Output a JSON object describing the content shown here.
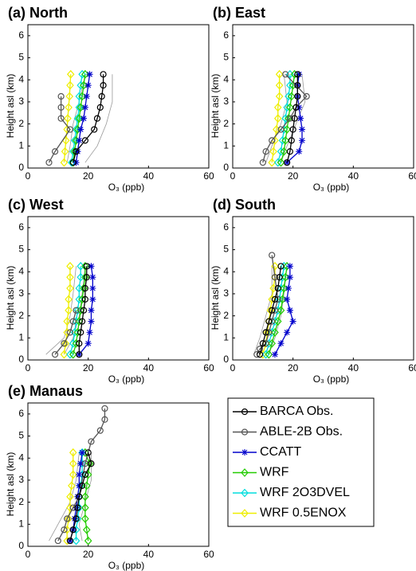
{
  "legend": {
    "entries": [
      {
        "name": "BARCA Obs.",
        "color": "#000000",
        "marker": "circle"
      },
      {
        "name": "ABLE-2B Obs.",
        "color": "#555555",
        "marker": "circle"
      },
      {
        "name": "CCATT",
        "color": "#0000cc",
        "marker": "asterisk"
      },
      {
        "name": "WRF",
        "color": "#22cc00",
        "marker": "diamond"
      },
      {
        "name": "WRF 2O3DVEL",
        "color": "#00dddd",
        "marker": "diamond"
      },
      {
        "name": "WRF 0.5ENOX",
        "color": "#eeee00",
        "marker": "diamond"
      }
    ]
  },
  "chart_data": [
    {
      "type": "line",
      "title": "(a) North",
      "x_label": "O₃ (ppb)",
      "y_label": "Height asl (km)",
      "xlim": [
        0,
        60
      ],
      "xticks": [
        0,
        20,
        40,
        60
      ],
      "ylim": [
        0,
        6.5
      ],
      "yticks": [
        0,
        1,
        2,
        3,
        4,
        5,
        6
      ],
      "range": {
        "y": [
          0.25,
          1,
          2,
          3,
          4.25
        ],
        "low": [
          13,
          14,
          15,
          17,
          19
        ],
        "high": [
          19,
          23,
          26,
          28,
          28
        ]
      },
      "series": [
        {
          "x": [
            15,
            16,
            19,
            22,
            23,
            24,
            24.5,
            25,
            25
          ],
          "y": [
            0.25,
            0.75,
            1.25,
            1.75,
            2.25,
            2.75,
            3.25,
            3.75,
            4.25
          ]
        },
        {
          "x": [
            7,
            9,
            14,
            11,
            11,
            11
          ],
          "y": [
            0.25,
            0.75,
            1.75,
            2.25,
            2.75,
            3.25
          ]
        },
        {
          "x": [
            16,
            16.5,
            17,
            17.5,
            18.5,
            19,
            19.5,
            20,
            20.5
          ],
          "y": [
            0.25,
            0.75,
            1.25,
            1.75,
            2.25,
            2.75,
            3.25,
            3.75,
            4.25
          ]
        },
        {
          "x": [
            15,
            15.5,
            16,
            16.5,
            17,
            17.5,
            18,
            18.5,
            19
          ],
          "y": [
            0.25,
            0.75,
            1.25,
            1.75,
            2.25,
            2.75,
            3.25,
            3.75,
            4.25
          ]
        },
        {
          "x": [
            14.5,
            15,
            15.5,
            16,
            16.5,
            17,
            17,
            17.5,
            18
          ],
          "y": [
            0.25,
            0.75,
            1.25,
            1.75,
            2.25,
            2.75,
            3.25,
            3.75,
            4.25
          ]
        },
        {
          "x": [
            12,
            12.3,
            12.6,
            13,
            13.2,
            13.5,
            13.8,
            14,
            14.2
          ],
          "y": [
            0.25,
            0.75,
            1.25,
            1.75,
            2.25,
            2.75,
            3.25,
            3.75,
            4.25
          ]
        }
      ]
    },
    {
      "type": "line",
      "title": "(b) East",
      "x_label": "O₃ (ppb)",
      "y_label": "Height asl (km)",
      "xlim": [
        0,
        60
      ],
      "xticks": [
        0,
        20,
        40,
        60
      ],
      "ylim": [
        0,
        6.5
      ],
      "yticks": [
        0,
        1,
        2,
        3,
        4,
        5,
        6
      ],
      "range": {
        "y": [
          0.25,
          1,
          2,
          3,
          4.25
        ],
        "low": [
          11,
          13,
          16,
          18,
          17
        ],
        "high": [
          16,
          18,
          21,
          24,
          23
        ]
      },
      "series": [
        {
          "x": [
            18,
            19,
            19.5,
            20,
            20.5,
            21,
            21.5,
            21.5,
            21.5
          ],
          "y": [
            0.25,
            0.75,
            1.25,
            1.75,
            2.25,
            2.75,
            3.25,
            3.75,
            4.25
          ]
        },
        {
          "x": [
            10,
            11,
            13,
            16,
            19,
            21,
            24.5,
            17.5
          ],
          "y": [
            0.25,
            0.75,
            1.25,
            1.75,
            2.25,
            2.75,
            3.25,
            4.25
          ]
        },
        {
          "x": [
            18,
            22,
            23,
            23,
            22.5,
            22,
            21.5,
            21.5,
            22
          ],
          "y": [
            0.25,
            0.75,
            1.25,
            1.75,
            2.25,
            2.75,
            3.25,
            3.75,
            4.25
          ]
        },
        {
          "x": [
            16,
            17,
            17.5,
            18,
            18.5,
            19,
            19.5,
            20,
            20.5
          ],
          "y": [
            0.25,
            0.75,
            1.25,
            1.75,
            2.25,
            2.75,
            3.25,
            3.75,
            4.25
          ]
        },
        {
          "x": [
            15,
            16,
            16.5,
            17,
            17.5,
            18,
            18.5,
            19,
            19
          ],
          "y": [
            0.25,
            0.75,
            1.25,
            1.75,
            2.25,
            2.75,
            3.25,
            3.75,
            4.25
          ]
        },
        {
          "x": [
            13,
            13.5,
            14,
            14.5,
            15,
            15,
            15.5,
            15.5,
            15.5
          ],
          "y": [
            0.25,
            0.75,
            1.25,
            1.75,
            2.25,
            2.75,
            3.25,
            3.75,
            4.25
          ]
        }
      ]
    },
    {
      "type": "line",
      "title": "(c) West",
      "x_label": "O₃ (ppb)",
      "y_label": "Height asl (km)",
      "xlim": [
        0,
        60
      ],
      "xticks": [
        0,
        20,
        40,
        60
      ],
      "ylim": [
        0,
        6.5
      ],
      "yticks": [
        0,
        1,
        2,
        3,
        4,
        5,
        6
      ],
      "range": {
        "y": [
          0.25,
          1,
          2,
          3,
          4.25
        ],
        "low": [
          6,
          12,
          14,
          15,
          16
        ],
        "high": [
          12,
          15,
          17,
          18,
          19
        ]
      },
      "series": [
        {
          "x": [
            17,
            17,
            17.5,
            18,
            18.5,
            19,
            19,
            19.5,
            19.5
          ],
          "y": [
            0.25,
            0.75,
            1.25,
            1.75,
            2.25,
            2.75,
            3.25,
            3.75,
            4.25
          ]
        },
        {
          "x": [
            9,
            12,
            14,
            15,
            16
          ],
          "y": [
            0.25,
            0.75,
            1.25,
            1.75,
            2.25
          ]
        },
        {
          "x": [
            17,
            20,
            20.5,
            21,
            21,
            21.5,
            21.5,
            21.5,
            21
          ],
          "y": [
            0.25,
            0.75,
            1.25,
            1.75,
            2.25,
            2.75,
            3.25,
            3.75,
            4.25
          ]
        },
        {
          "x": [
            15,
            16,
            16.5,
            17,
            17.5,
            18,
            18.5,
            19,
            19
          ],
          "y": [
            0.25,
            0.75,
            1.25,
            1.75,
            2.25,
            2.75,
            3.25,
            3.75,
            4.25
          ]
        },
        {
          "x": [
            14,
            15,
            15.5,
            16,
            16.5,
            17,
            17,
            17.5,
            17.5
          ],
          "y": [
            0.25,
            0.75,
            1.25,
            1.75,
            2.25,
            2.75,
            3.25,
            3.75,
            4.25
          ]
        },
        {
          "x": [
            12,
            12.5,
            13,
            13,
            13.5,
            13.5,
            14,
            14,
            14
          ],
          "y": [
            0.25,
            0.75,
            1.25,
            1.75,
            2.25,
            2.75,
            3.25,
            3.75,
            4.25
          ]
        }
      ]
    },
    {
      "type": "line",
      "title": "(d) South",
      "x_label": "O₃ (ppb)",
      "y_label": "Height asl (km)",
      "xlim": [
        0,
        60
      ],
      "xticks": [
        0,
        20,
        40,
        60
      ],
      "ylim": [
        0,
        6.5
      ],
      "yticks": [
        0,
        1,
        2,
        3,
        4,
        5,
        6
      ],
      "range": {
        "y": [
          0.25,
          1,
          2,
          3,
          4.25
        ],
        "low": [
          7,
          9,
          11,
          13,
          13
        ],
        "high": [
          12,
          14,
          16,
          17,
          18
        ]
      },
      "series": [
        {
          "x": [
            9,
            10,
            11,
            12,
            13,
            14,
            15,
            15.5,
            16
          ],
          "y": [
            0.25,
            0.75,
            1.25,
            1.75,
            2.25,
            2.75,
            3.25,
            3.75,
            4.25
          ]
        },
        {
          "x": [
            8,
            9,
            11,
            12,
            13,
            14,
            15,
            14,
            13
          ],
          "y": [
            0.25,
            0.5,
            0.75,
            1.25,
            1.75,
            2.25,
            2.75,
            3.75,
            4.75
          ]
        },
        {
          "x": [
            14,
            16,
            18,
            20,
            19,
            18,
            18.5,
            19,
            19
          ],
          "y": [
            0.25,
            0.75,
            1.25,
            1.75,
            2.25,
            2.75,
            3.25,
            3.75,
            4.25
          ]
        },
        {
          "x": [
            12,
            13,
            14,
            15,
            16,
            16.5,
            17,
            17.5,
            18
          ],
          "y": [
            0.25,
            0.75,
            1.25,
            1.75,
            2.25,
            2.75,
            3.25,
            3.75,
            4.25
          ]
        },
        {
          "x": [
            11,
            12,
            13,
            14,
            15,
            15.5,
            16,
            16.5,
            17
          ],
          "y": [
            0.25,
            0.75,
            1.25,
            1.75,
            2.25,
            2.75,
            3.25,
            3.75,
            4.25
          ]
        },
        {
          "x": [
            10,
            11,
            11.5,
            12,
            12.5,
            13,
            13.5,
            14,
            14
          ],
          "y": [
            0.25,
            0.75,
            1.25,
            1.75,
            2.25,
            2.75,
            3.25,
            3.75,
            4.25
          ]
        }
      ]
    },
    {
      "type": "line",
      "title": "(e) Manaus",
      "x_label": "O₃ (ppb)",
      "y_label": "Height asl (km)",
      "xlim": [
        0,
        60
      ],
      "xticks": [
        0,
        20,
        40,
        60
      ],
      "ylim": [
        0,
        6.5
      ],
      "yticks": [
        0,
        1,
        2,
        3,
        4,
        5,
        6
      ],
      "range": {
        "y": [
          0.25,
          1,
          2,
          3,
          4.25
        ],
        "low": [
          7,
          10,
          14,
          16,
          17
        ],
        "high": [
          18,
          17,
          19,
          21,
          21
        ]
      },
      "series": [
        {
          "x": [
            14,
            15,
            16,
            16.5,
            17,
            18,
            19,
            21,
            20
          ],
          "y": [
            0.25,
            0.75,
            1.25,
            1.75,
            2.25,
            2.75,
            3.25,
            3.75,
            4.25
          ]
        },
        {
          "x": [
            10,
            12,
            13,
            15,
            17,
            19,
            21,
            24,
            25.5,
            25.5
          ],
          "y": [
            0.25,
            0.75,
            1.25,
            1.75,
            2.25,
            3.75,
            4.75,
            5.25,
            5.75,
            6.25
          ]
        },
        {
          "x": [
            14,
            15,
            15.5,
            16,
            16.5,
            17,
            17,
            17.5,
            18
          ],
          "y": [
            0.25,
            0.75,
            1.25,
            1.75,
            2.25,
            2.75,
            3.25,
            3.75,
            4.25
          ]
        },
        {
          "x": [
            20,
            19.5,
            19,
            19,
            19,
            19.5,
            20,
            20.5,
            19
          ],
          "y": [
            0.25,
            0.75,
            1.25,
            1.75,
            2.25,
            2.75,
            3.25,
            3.75,
            4.25
          ]
        },
        {
          "x": [
            16,
            16,
            16.5,
            17,
            17,
            17.5,
            18,
            18,
            18
          ],
          "y": [
            0.25,
            0.75,
            1.25,
            1.75,
            2.25,
            2.75,
            3.25,
            3.75,
            4.25
          ]
        },
        {
          "x": [
            13,
            13,
            13.5,
            14,
            14,
            14.5,
            15,
            15,
            15
          ],
          "y": [
            0.25,
            0.75,
            1.25,
            1.75,
            2.25,
            2.75,
            3.25,
            3.75,
            4.25
          ]
        }
      ]
    }
  ]
}
